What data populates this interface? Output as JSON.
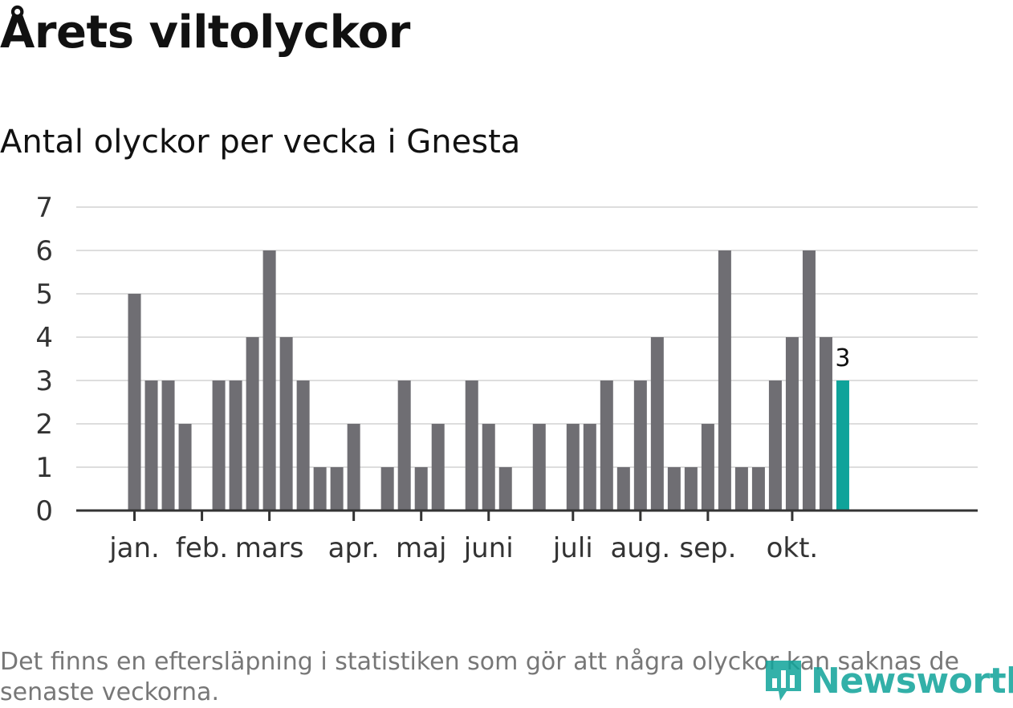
{
  "header": {
    "title": "Årets viltolyckor",
    "subtitle": "Antal olyckor per vecka i Gnesta"
  },
  "footer": {
    "note": "Det finns en eftersläpning i statistiken som gör att några olyckor kan saknas de senaste veckorna.",
    "logo_text": "Newsworthy"
  },
  "colors": {
    "bar": "#6f6e73",
    "highlight": "#0fa39a",
    "grid": "#dddddd",
    "axis": "#333333"
  },
  "chart_data": {
    "type": "bar",
    "title": "Antal olyckor per vecka i Gnesta",
    "xlabel": "",
    "ylabel": "",
    "ylim": [
      0,
      7
    ],
    "yticks": [
      0,
      1,
      2,
      3,
      4,
      5,
      6,
      7
    ],
    "weeks": [
      1,
      2,
      3,
      4,
      5,
      6,
      7,
      8,
      9,
      10,
      11,
      12,
      13,
      14,
      15,
      16,
      17,
      18,
      19,
      20,
      21,
      22,
      23,
      24,
      25,
      26,
      27,
      28,
      29,
      30,
      31,
      32,
      33,
      34,
      35,
      36,
      37,
      38,
      39,
      40,
      41,
      42,
      43,
      44,
      45,
      46,
      47,
      48,
      49,
      50,
      51,
      52
    ],
    "values": [
      null,
      null,
      5,
      3,
      3,
      2,
      0,
      3,
      3,
      4,
      6,
      4,
      3,
      1,
      1,
      2,
      0,
      1,
      3,
      1,
      2,
      0,
      3,
      2,
      1,
      0,
      2,
      0,
      2,
      2,
      3,
      1,
      3,
      4,
      1,
      1,
      2,
      6,
      1,
      1,
      3,
      4,
      6,
      4,
      3,
      null,
      null,
      null,
      null,
      null,
      null,
      null
    ],
    "highlight_index": 44,
    "highlight_label": "3",
    "month_ticks": [
      {
        "label": "jan.",
        "week": 3
      },
      {
        "label": "feb.",
        "week": 7
      },
      {
        "label": "mars",
        "week": 11
      },
      {
        "label": "apr.",
        "week": 16
      },
      {
        "label": "maj",
        "week": 20
      },
      {
        "label": "juni",
        "week": 24
      },
      {
        "label": "juli",
        "week": 29
      },
      {
        "label": "aug.",
        "week": 33
      },
      {
        "label": "sep.",
        "week": 37
      },
      {
        "label": "okt.",
        "week": 42
      }
    ]
  }
}
